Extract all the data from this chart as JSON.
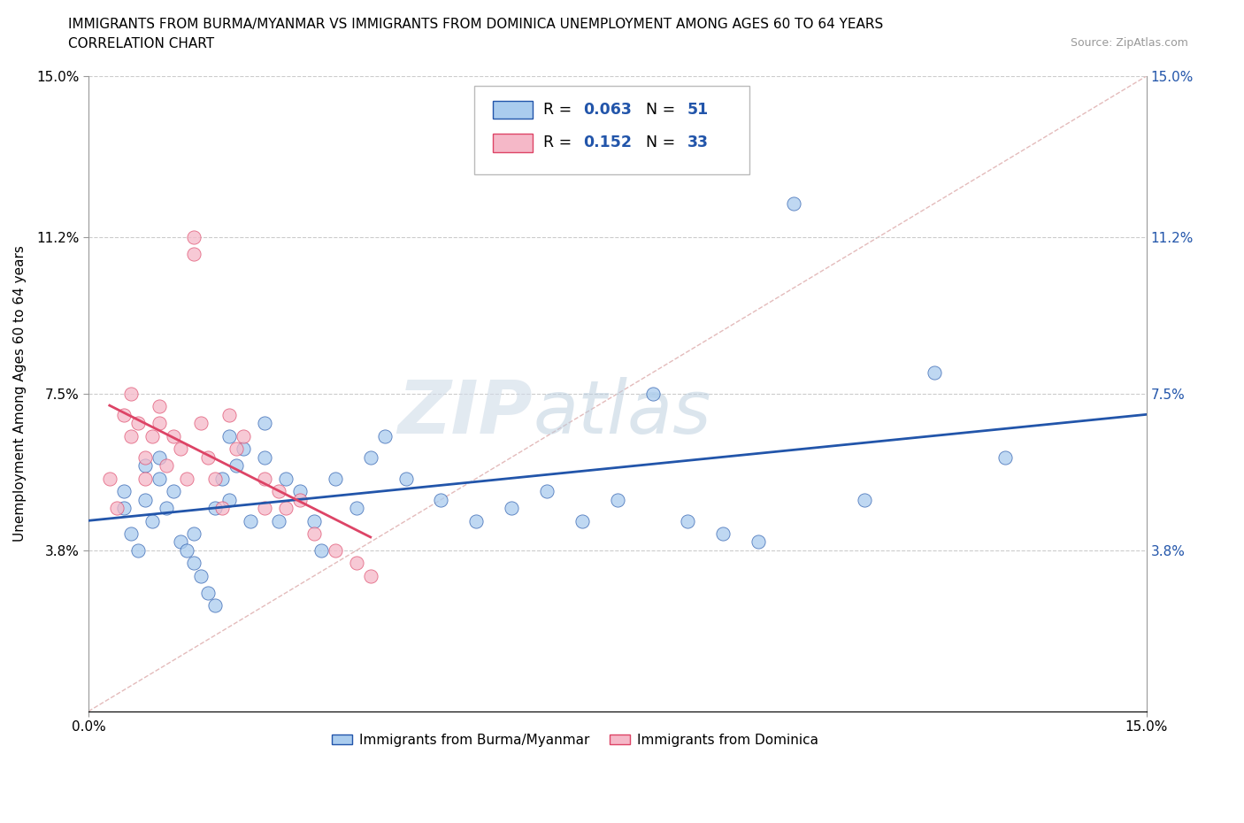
{
  "title_line1": "IMMIGRANTS FROM BURMA/MYANMAR VS IMMIGRANTS FROM DOMINICA UNEMPLOYMENT AMONG AGES 60 TO 64 YEARS",
  "title_line2": "CORRELATION CHART",
  "source": "Source: ZipAtlas.com",
  "ylabel": "Unemployment Among Ages 60 to 64 years",
  "xlim": [
    0.0,
    0.15
  ],
  "ylim": [
    0.0,
    0.15
  ],
  "xtick_labels": [
    "0.0%",
    "15.0%"
  ],
  "ytick_labels_left": [
    "3.8%",
    "7.5%",
    "11.2%",
    "15.0%"
  ],
  "ytick_labels_right": [
    "3.8%",
    "7.5%",
    "11.2%",
    "15.0%"
  ],
  "ytick_vals": [
    0.038,
    0.075,
    0.112,
    0.15
  ],
  "color_burma": "#aaccee",
  "color_dominica": "#f5b8c8",
  "trend_color_burma": "#2255aa",
  "trend_color_dominica": "#dd4466",
  "legend_r1": "0.063",
  "legend_n1": "51",
  "legend_r2": "0.152",
  "legend_n2": "33",
  "burma_x": [
    0.005,
    0.005,
    0.006,
    0.007,
    0.008,
    0.008,
    0.009,
    0.01,
    0.01,
    0.011,
    0.012,
    0.013,
    0.014,
    0.015,
    0.015,
    0.016,
    0.017,
    0.018,
    0.018,
    0.019,
    0.02,
    0.02,
    0.021,
    0.022,
    0.023,
    0.025,
    0.025,
    0.027,
    0.028,
    0.03,
    0.032,
    0.033,
    0.035,
    0.038,
    0.04,
    0.042,
    0.045,
    0.05,
    0.055,
    0.06,
    0.065,
    0.07,
    0.075,
    0.08,
    0.085,
    0.09,
    0.095,
    0.1,
    0.11,
    0.12,
    0.13
  ],
  "burma_y": [
    0.048,
    0.052,
    0.042,
    0.038,
    0.05,
    0.058,
    0.045,
    0.055,
    0.06,
    0.048,
    0.052,
    0.04,
    0.038,
    0.035,
    0.042,
    0.032,
    0.028,
    0.025,
    0.048,
    0.055,
    0.05,
    0.065,
    0.058,
    0.062,
    0.045,
    0.06,
    0.068,
    0.045,
    0.055,
    0.052,
    0.045,
    0.038,
    0.055,
    0.048,
    0.06,
    0.065,
    0.055,
    0.05,
    0.045,
    0.048,
    0.052,
    0.045,
    0.05,
    0.075,
    0.045,
    0.042,
    0.04,
    0.12,
    0.05,
    0.08,
    0.06
  ],
  "dom_x": [
    0.003,
    0.004,
    0.005,
    0.006,
    0.006,
    0.007,
    0.008,
    0.008,
    0.009,
    0.01,
    0.01,
    0.011,
    0.012,
    0.013,
    0.014,
    0.015,
    0.015,
    0.016,
    0.017,
    0.018,
    0.019,
    0.02,
    0.021,
    0.022,
    0.025,
    0.025,
    0.027,
    0.028,
    0.03,
    0.032,
    0.035,
    0.038,
    0.04
  ],
  "dom_y": [
    0.055,
    0.048,
    0.07,
    0.065,
    0.075,
    0.068,
    0.06,
    0.055,
    0.065,
    0.072,
    0.068,
    0.058,
    0.065,
    0.062,
    0.055,
    0.108,
    0.112,
    0.068,
    0.06,
    0.055,
    0.048,
    0.07,
    0.062,
    0.065,
    0.048,
    0.055,
    0.052,
    0.048,
    0.05,
    0.042,
    0.038,
    0.035,
    0.032
  ]
}
